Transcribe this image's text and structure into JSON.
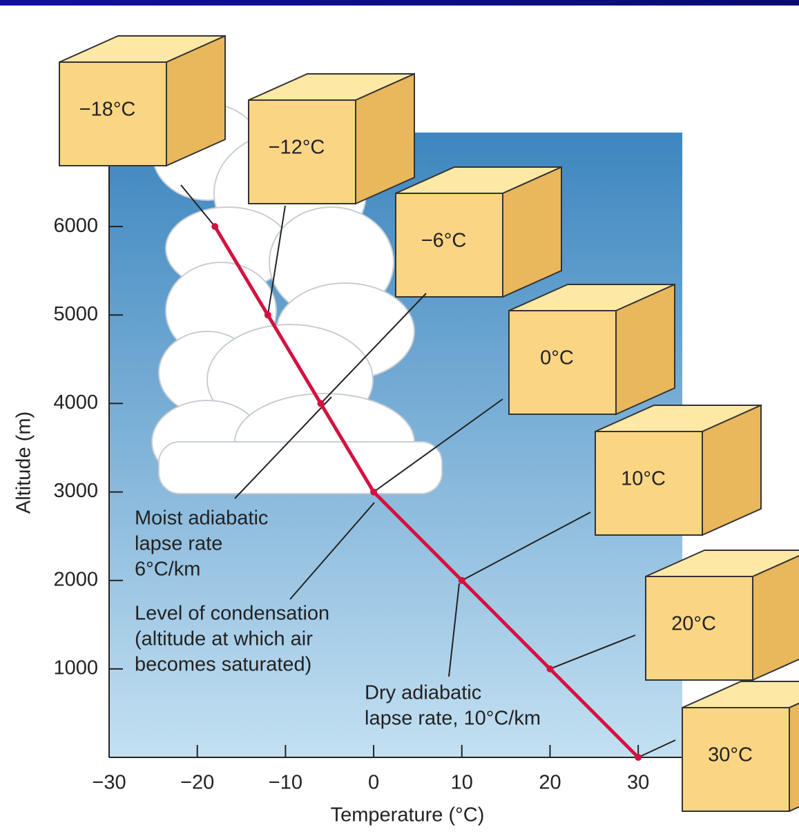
{
  "chart_data": {
    "type": "line",
    "x": [
      -18,
      -12,
      -6,
      0,
      10,
      20,
      30
    ],
    "values": [
      6000,
      5000,
      4000,
      3000,
      2000,
      1000,
      0
    ],
    "color": "#d4123f",
    "point_labels": [
      "−18°C",
      "−12°C",
      "−6°C",
      "0°C",
      "10°C",
      "20°C",
      "30°C"
    ],
    "xlabel": "Temperature (°C)",
    "ylabel": "Altitude (m)",
    "xlim": [
      -30,
      35
    ],
    "ylim": [
      0,
      7000
    ],
    "xticks": [
      {
        "value": -30,
        "label": "−30"
      },
      {
        "value": -20,
        "label": "−20"
      },
      {
        "value": -10,
        "label": "−10"
      },
      0,
      10,
      20,
      30
    ],
    "yticks": [
      1000,
      2000,
      3000,
      4000,
      5000,
      6000
    ],
    "annotations": [
      {
        "lines": [
          "Moist adiabatic",
          "lapse rate",
          "6°C/km"
        ]
      },
      {
        "lines": [
          "Level of condensation",
          "(altitude at which air",
          "becomes saturated)"
        ]
      },
      {
        "lines": [
          "Dry adiabatic",
          "lapse rate, 10°C/km"
        ]
      }
    ]
  }
}
